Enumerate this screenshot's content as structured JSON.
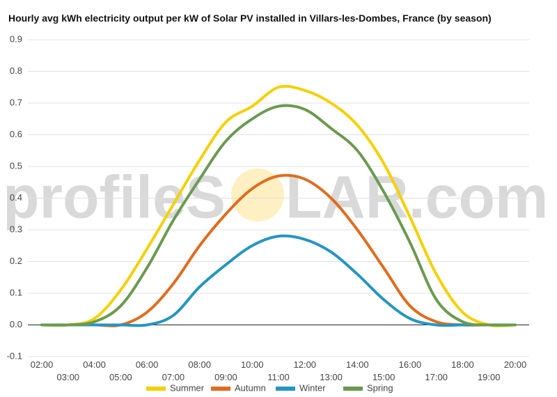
{
  "chart_data": {
    "type": "line",
    "title": "Hourly avg kWh electricity output per kW of Solar PV installed in Villars-les-Dombes, France (by season)",
    "watermark": {
      "left": "profileS",
      "right": "LAR.com"
    },
    "xlabel": "",
    "ylabel": "",
    "ylim": [
      -0.1,
      0.9
    ],
    "yticks": [
      "-0.1",
      "0.0",
      "0.1",
      "0.2",
      "0.3",
      "0.4",
      "0.5",
      "0.6",
      "0.7",
      "0.8",
      "0.9"
    ],
    "grid": true,
    "legend_position": "bottom",
    "x": [
      "02:00",
      "03:00",
      "04:00",
      "05:00",
      "06:00",
      "07:00",
      "08:00",
      "09:00",
      "10:00",
      "11:00",
      "12:00",
      "13:00",
      "14:00",
      "15:00",
      "16:00",
      "17:00",
      "18:00",
      "19:00",
      "20:00"
    ],
    "series": [
      {
        "name": "Summer",
        "color": "#f5d000",
        "values": [
          0.0,
          0.0,
          0.02,
          0.11,
          0.24,
          0.38,
          0.52,
          0.64,
          0.69,
          0.75,
          0.74,
          0.7,
          0.63,
          0.51,
          0.34,
          0.16,
          0.04,
          0.0,
          0.0
        ]
      },
      {
        "name": "Autumn",
        "color": "#e06c1e",
        "values": [
          0.0,
          0.0,
          0.0,
          0.0,
          0.04,
          0.13,
          0.25,
          0.35,
          0.43,
          0.47,
          0.46,
          0.4,
          0.3,
          0.18,
          0.06,
          0.01,
          0.0,
          0.0,
          0.0
        ]
      },
      {
        "name": "Winter",
        "color": "#2595c2",
        "values": [
          0.0,
          0.0,
          0.0,
          0.0,
          0.0,
          0.03,
          0.12,
          0.19,
          0.25,
          0.28,
          0.27,
          0.23,
          0.16,
          0.08,
          0.02,
          0.0,
          0.0,
          0.0,
          0.0
        ]
      },
      {
        "name": "Spring",
        "color": "#6b9a4f",
        "values": [
          0.0,
          0.0,
          0.01,
          0.06,
          0.18,
          0.33,
          0.46,
          0.58,
          0.65,
          0.69,
          0.68,
          0.62,
          0.55,
          0.42,
          0.26,
          0.08,
          0.01,
          0.0,
          0.0
        ]
      }
    ]
  }
}
